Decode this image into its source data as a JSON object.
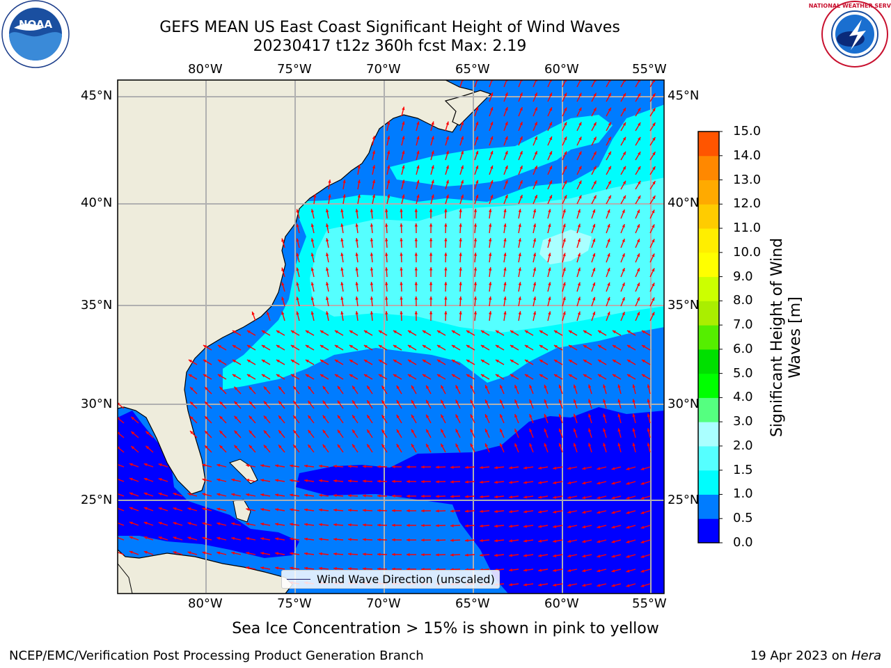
{
  "title": {
    "line1": "GEFS MEAN US East Coast Significant Height of Wind Waves",
    "line2": "20230417 t12z 360h fcst   Max: 2.19"
  },
  "logos": {
    "left": {
      "name": "NOAA",
      "ring_text": "NATIONAL OCEANIC AND ATMOSPHERIC ADMINISTRATION · U.S. DEPARTMENT OF COMMERCE",
      "center_text": "NOAA"
    },
    "right": {
      "name": "National Weather Service",
      "ring_text": "NATIONAL WEATHER SERVICE"
    }
  },
  "map": {
    "lon_labels": [
      "80°W",
      "75°W",
      "70°W",
      "65°W",
      "60°W",
      "55°W"
    ],
    "lat_labels": [
      "45°N",
      "40°N",
      "35°N",
      "30°N",
      "25°N"
    ],
    "lon_range": [
      -85,
      -54
    ],
    "lat_range": [
      20,
      46
    ],
    "colors": {
      "land": "#eeecdc",
      "ocean_0_0.5": "#0000ff",
      "ocean_0.5_1.0": "#007cff",
      "ocean_1.0_1.5": "#00fdfd",
      "ocean_1.5_2.0": "#55ffff",
      "ocean_2.0_3.0": "#aaffff",
      "arrows": "#ff0000",
      "grid": "#b0b0b0"
    }
  },
  "legend": {
    "label": "Wind Wave Direction (unscaled)"
  },
  "colorbar": {
    "label_line1": "Significant Height of Wind",
    "label_line2": "Waves [m]",
    "ticks": [
      "0.0",
      "0.5",
      "1.0",
      "1.5",
      "2.0",
      "3.0",
      "4.0",
      "5.0",
      "6.0",
      "7.0",
      "8.0",
      "9.0",
      "10.0",
      "11.0",
      "12.0",
      "13.0",
      "14.0",
      "15.0"
    ],
    "colors": [
      "#0000ff",
      "#007cff",
      "#00fdfd",
      "#55ffff",
      "#aaffff",
      "#55ff80",
      "#00ff00",
      "#00e000",
      "#55ee00",
      "#aaee00",
      "#ccff00",
      "#ffff00",
      "#ffee00",
      "#ffcc00",
      "#ffaa00",
      "#ff8800",
      "#ff5500",
      "#ff2200",
      "#ff0000"
    ]
  },
  "subnote": "Sea Ice Concentration > 15% is shown in pink to yellow",
  "footer": {
    "left": "NCEP/EMC/Verification Post Processing Product Generation Branch",
    "right_text": "19 Apr 2023 on ",
    "right_italic": "Hera"
  }
}
